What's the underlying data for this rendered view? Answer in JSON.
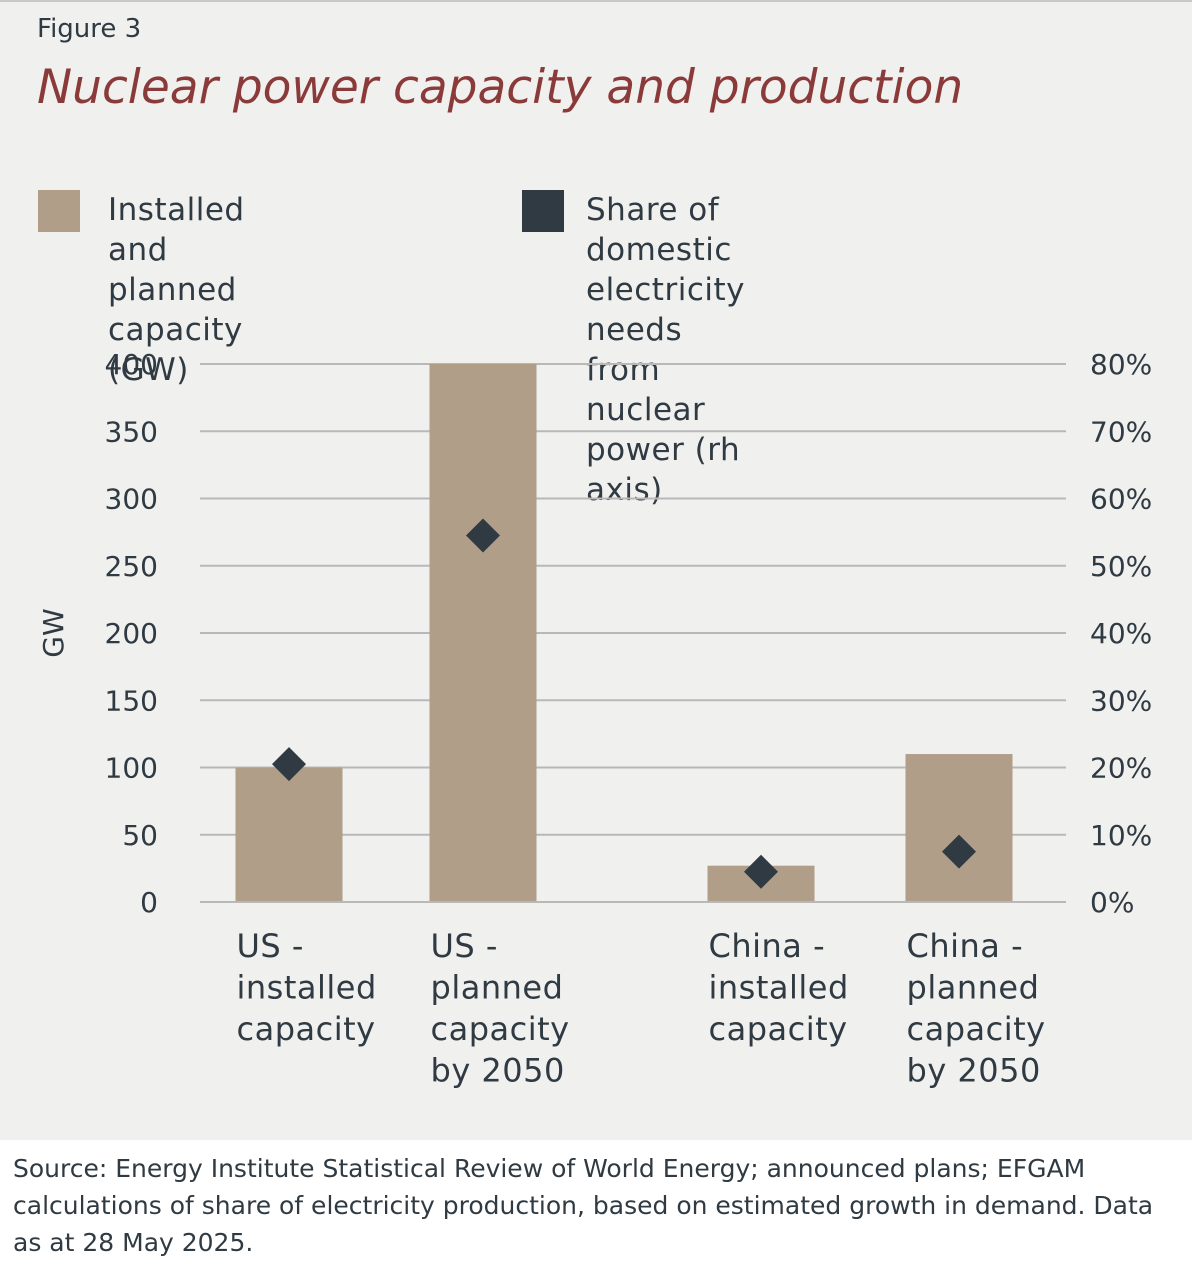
{
  "figure_label": "Figure 3",
  "title": "Nuclear power capacity and production",
  "legend": [
    {
      "label": "Installed and planned\ncapacity (GW)",
      "color": "#b09e88",
      "shape": "square"
    },
    {
      "label": "Share of domestic electricity needs\nfrom nuclear power (rh axis)",
      "color": "#2f3a42",
      "shape": "square"
    }
  ],
  "source": "Source: Energy Institute Statistical Review of World Energy;  announced plans; EFGAM calculations of share of electricity production, based on estimated growth in demand. Data as at 28 May 2025.",
  "chart_data": {
    "type": "bar",
    "categories": [
      [
        "US -",
        "installed",
        "capacity"
      ],
      [
        "US -",
        "planned",
        "capacity",
        "by 2050"
      ],
      [
        "China -",
        "installed",
        "capacity"
      ],
      [
        "China -",
        "planned",
        "capacity",
        "by 2050"
      ]
    ],
    "series": [
      {
        "name": "Installed and planned capacity (GW)",
        "type": "bar",
        "axis": "left",
        "color": "#b09e88",
        "values": [
          100,
          400,
          27,
          110
        ]
      },
      {
        "name": "Share of domestic electricity needs from nuclear power (rh axis)",
        "type": "scatter",
        "marker": "diamond",
        "axis": "right",
        "color": "#2f3a42",
        "values": [
          20.5,
          54.5,
          4.5,
          7.5
        ]
      }
    ],
    "ylabel": "GW",
    "ylim": [
      0,
      400
    ],
    "y_ticks": [
      "0",
      "50",
      "100",
      "150",
      "200",
      "250",
      "300",
      "350",
      "400"
    ],
    "y2lim": [
      0,
      80
    ],
    "y2_ticks": [
      "0%",
      "10%",
      "20%",
      "30%",
      "40%",
      "50%",
      "60%",
      "70%",
      "80%"
    ],
    "grid": true,
    "legend_position": "top"
  }
}
